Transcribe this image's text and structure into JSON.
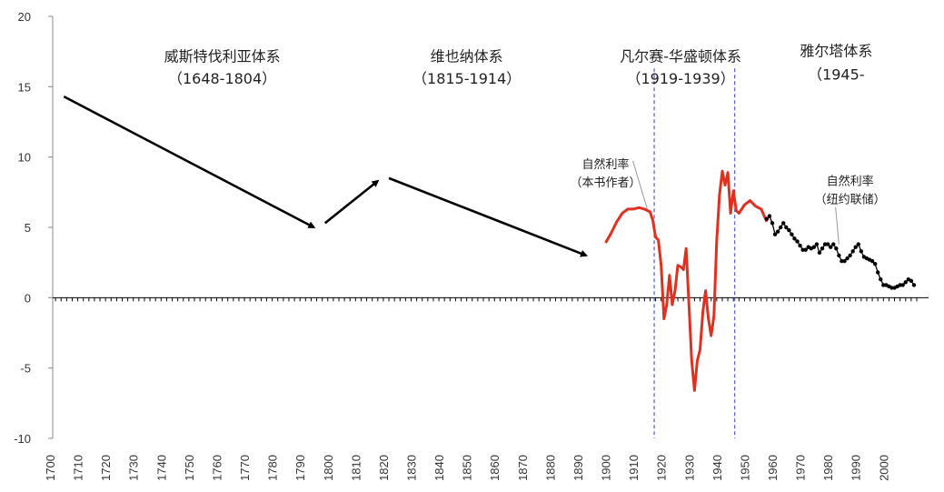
{
  "chart_data": {
    "type": "line",
    "title": "",
    "xlabel": "",
    "ylabel": "",
    "xlim": [
      1700,
      2012
    ],
    "ylim": [
      -10,
      20
    ],
    "grid": false,
    "y_ticks": [
      "20",
      "15",
      "10",
      "5",
      "0",
      "-5",
      "-10"
    ],
    "y_tick_values": [
      20,
      15,
      10,
      5,
      0,
      -5,
      -10
    ],
    "x_ticks": [
      "1700",
      "1710",
      "1720",
      "1730",
      "1740",
      "1750",
      "1760",
      "1770",
      "1780",
      "1790",
      "1800",
      "1810",
      "1820",
      "1830",
      "1840",
      "1850",
      "1860",
      "1870",
      "1880",
      "1890",
      "1900",
      "1910",
      "1920",
      "1930",
      "1940",
      "1950",
      "1960",
      "1970",
      "1980",
      "1990",
      "2000"
    ],
    "x_tick_values": [
      1700,
      1710,
      1720,
      1730,
      1740,
      1750,
      1760,
      1770,
      1780,
      1790,
      1800,
      1810,
      1820,
      1830,
      1840,
      1850,
      1860,
      1870,
      1880,
      1890,
      1900,
      1910,
      1920,
      1930,
      1940,
      1950,
      1960,
      1970,
      1980,
      1990,
      2000
    ],
    "minor_tick_step": 2,
    "eras": [
      {
        "name": "威斯特伐利亚体系",
        "period": "（1648-1804）",
        "x": 1762,
        "y_name": 16.8,
        "y_period": 15.2
      },
      {
        "name": "维也纳体系",
        "period": "（1815-1914）",
        "x": 1850,
        "y_name": 16.8,
        "y_period": 15.2
      },
      {
        "name": "凡尔赛-华盛顿体系",
        "period": "（1919-1939）",
        "x": 1927,
        "y_name": 16.8,
        "y_period": 15.2
      },
      {
        "name": "雅尔塔体系",
        "period": "（1945-",
        "x": 1983,
        "y_name": 17.2,
        "y_period": 15.5
      }
    ],
    "era_boundaries": [
      1917.5,
      1946.5
    ],
    "trend_arrows": [
      {
        "from": [
          1705,
          14.3
        ],
        "to": [
          1795,
          5.0
        ]
      },
      {
        "from": [
          1799,
          5.3
        ],
        "to": [
          1818,
          8.3
        ]
      },
      {
        "from": [
          1822,
          8.5
        ],
        "to": [
          1893,
          3.0
        ]
      }
    ],
    "series": [
      {
        "name": "自然利率（本书作者）",
        "color": "#e03020",
        "x": [
          1900,
          1902,
          1904,
          1906,
          1908,
          1910,
          1912,
          1914,
          1916,
          1917,
          1918,
          1919,
          1920,
          1921,
          1922,
          1923,
          1924,
          1925,
          1926,
          1927,
          1928,
          1929,
          1930,
          1931,
          1932,
          1933,
          1934,
          1935,
          1936,
          1937,
          1938,
          1939,
          1940,
          1941,
          1942,
          1943,
          1944,
          1945,
          1946,
          1947,
          1948,
          1950,
          1952,
          1954,
          1956,
          1958
        ],
        "values": [
          3.9,
          4.6,
          5.4,
          6.0,
          6.3,
          6.3,
          6.4,
          6.3,
          6.1,
          5.5,
          4.3,
          4.1,
          2.3,
          -1.5,
          -0.5,
          1.6,
          -0.5,
          0.5,
          2.3,
          2.2,
          2.0,
          3.5,
          -0.5,
          -4.5,
          -6.6,
          -4.5,
          -3.7,
          -1.0,
          0.5,
          -1.5,
          -2.7,
          -1.3,
          4.0,
          7.3,
          9.0,
          8.0,
          8.9,
          6.0,
          7.6,
          6.2,
          6.0,
          6.6,
          6.9,
          6.5,
          6.3,
          5.4
        ]
      },
      {
        "name": "自然利率（纽约联储）",
        "color": "#000000",
        "x": [
          1958,
          1959,
          1960,
          1961,
          1962,
          1963,
          1964,
          1965,
          1966,
          1967,
          1968,
          1969,
          1970,
          1971,
          1972,
          1973,
          1974,
          1975,
          1976,
          1977,
          1978,
          1979,
          1980,
          1981,
          1982,
          1983,
          1984,
          1985,
          1986,
          1987,
          1988,
          1989,
          1990,
          1991,
          1992,
          1993,
          1994,
          1995,
          1996,
          1997,
          1998,
          1999,
          2000,
          2001,
          2002,
          2003,
          2004,
          2005,
          2006,
          2007,
          2008,
          2009,
          2010,
          2011
        ],
        "values": [
          5.6,
          5.8,
          5.3,
          4.5,
          4.7,
          5.0,
          5.3,
          5.0,
          4.8,
          4.5,
          4.2,
          4.0,
          3.7,
          3.4,
          3.4,
          3.6,
          3.5,
          3.6,
          3.8,
          3.2,
          3.5,
          3.8,
          3.8,
          3.6,
          3.8,
          3.5,
          3.0,
          2.6,
          2.6,
          2.8,
          3.0,
          3.3,
          3.6,
          3.8,
          3.3,
          2.9,
          2.8,
          2.7,
          2.6,
          2.4,
          1.8,
          1.3,
          0.9,
          0.9,
          0.8,
          0.7,
          0.7,
          0.8,
          0.9,
          0.9,
          1.1,
          1.3,
          1.2,
          0.9
        ]
      }
    ],
    "annotations": [
      {
        "lines": [
          "自然利率",
          "（本书作者）"
        ],
        "x": 1900,
        "y_top": 9.2,
        "pointer_to": [
          1915,
          6.3
        ]
      },
      {
        "lines": [
          "自然利率",
          "（纽约联储）"
        ],
        "x": 1988,
        "y_top": 8.0,
        "pointer_to": [
          1984,
          3.8
        ]
      }
    ]
  }
}
